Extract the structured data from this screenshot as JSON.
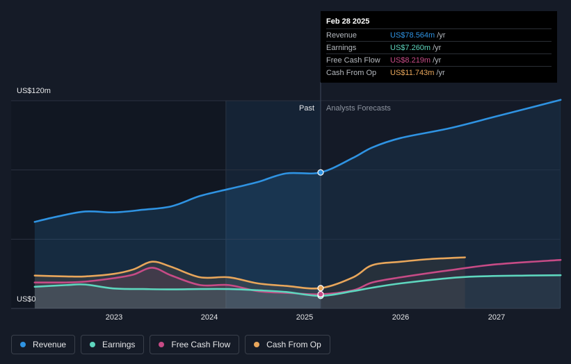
{
  "chart_data": {
    "type": "line",
    "y_axis": {
      "max_label": "US$120m",
      "min_label": "US$0",
      "ylim": [
        0,
        120
      ]
    },
    "x_ticks": [
      "2023",
      "2024",
      "2025",
      "2026",
      "2027"
    ],
    "region_labels": {
      "past": "Past",
      "forecast": "Analysts Forecasts"
    },
    "highlight_date": "Feb 28 2025",
    "grid": true,
    "series": [
      {
        "name": "Revenue",
        "color": "#2f93e2",
        "area": true,
        "points": [
          [
            2022.17,
            50
          ],
          [
            2022.4,
            53
          ],
          [
            2022.7,
            56
          ],
          [
            2023.0,
            55.5
          ],
          [
            2023.3,
            57
          ],
          [
            2023.6,
            59
          ],
          [
            2023.9,
            65
          ],
          [
            2024.2,
            69
          ],
          [
            2024.5,
            73
          ],
          [
            2024.8,
            78
          ],
          [
            2025.16,
            78.564
          ],
          [
            2025.5,
            87
          ],
          [
            2025.7,
            93
          ],
          [
            2026.0,
            98.5
          ],
          [
            2026.5,
            104
          ],
          [
            2027.0,
            111
          ],
          [
            2027.67,
            120.5
          ]
        ]
      },
      {
        "name": "Earnings",
        "color": "#5ed6be",
        "area": true,
        "points": [
          [
            2022.17,
            12.5
          ],
          [
            2022.5,
            13.5
          ],
          [
            2022.7,
            13.8
          ],
          [
            2023.0,
            11.5
          ],
          [
            2023.3,
            11.2
          ],
          [
            2023.6,
            11
          ],
          [
            2023.9,
            11.2
          ],
          [
            2024.2,
            11.2
          ],
          [
            2024.5,
            10.5
          ],
          [
            2024.8,
            9.5
          ],
          [
            2025.16,
            7.26
          ],
          [
            2025.5,
            10
          ],
          [
            2025.7,
            12
          ],
          [
            2026.0,
            14.5
          ],
          [
            2026.5,
            17.5
          ],
          [
            2026.8,
            18.5
          ],
          [
            2027.3,
            19
          ],
          [
            2027.67,
            19.2
          ]
        ]
      },
      {
        "name": "Free Cash Flow",
        "color": "#c74b86",
        "area": true,
        "points": [
          [
            2022.17,
            15
          ],
          [
            2022.5,
            15
          ],
          [
            2022.7,
            15.5
          ],
          [
            2023.0,
            17.5
          ],
          [
            2023.2,
            19.5
          ],
          [
            2023.4,
            23.5
          ],
          [
            2023.6,
            19
          ],
          [
            2023.9,
            13.5
          ],
          [
            2024.2,
            13.5
          ],
          [
            2024.5,
            10
          ],
          [
            2024.8,
            9
          ],
          [
            2025.16,
            8.219
          ],
          [
            2025.5,
            10.5
          ],
          [
            2025.7,
            15
          ],
          [
            2026.0,
            18
          ],
          [
            2026.5,
            22
          ],
          [
            2027.0,
            25.5
          ],
          [
            2027.67,
            28
          ]
        ]
      },
      {
        "name": "Cash From Op",
        "color": "#e8a65b",
        "area": true,
        "points": [
          [
            2022.17,
            19
          ],
          [
            2022.5,
            18.5
          ],
          [
            2022.7,
            18.5
          ],
          [
            2023.0,
            20
          ],
          [
            2023.2,
            22.5
          ],
          [
            2023.4,
            27
          ],
          [
            2023.6,
            24
          ],
          [
            2023.9,
            18
          ],
          [
            2024.2,
            18
          ],
          [
            2024.5,
            14.5
          ],
          [
            2024.8,
            13
          ],
          [
            2025.16,
            11.743
          ],
          [
            2025.5,
            18
          ],
          [
            2025.7,
            25
          ],
          [
            2026.0,
            27
          ],
          [
            2026.3,
            28.5
          ],
          [
            2026.67,
            29.5
          ]
        ]
      }
    ]
  },
  "tooltip": {
    "date": "Feb 28 2025",
    "rows": [
      {
        "name": "Revenue",
        "value": "US$78.564m",
        "unit": "/yr",
        "color": "#2f93e2"
      },
      {
        "name": "Earnings",
        "value": "US$7.260m",
        "unit": "/yr",
        "color": "#5ed6be"
      },
      {
        "name": "Free Cash Flow",
        "value": "US$8.219m",
        "unit": "/yr",
        "color": "#c74b86"
      },
      {
        "name": "Cash From Op",
        "value": "US$11.743m",
        "unit": "/yr",
        "color": "#e8a65b"
      }
    ]
  },
  "legend": [
    {
      "label": "Revenue",
      "color": "#2f93e2"
    },
    {
      "label": "Earnings",
      "color": "#5ed6be"
    },
    {
      "label": "Free Cash Flow",
      "color": "#c74b86"
    },
    {
      "label": "Cash From Op",
      "color": "#e8a65b"
    }
  ]
}
